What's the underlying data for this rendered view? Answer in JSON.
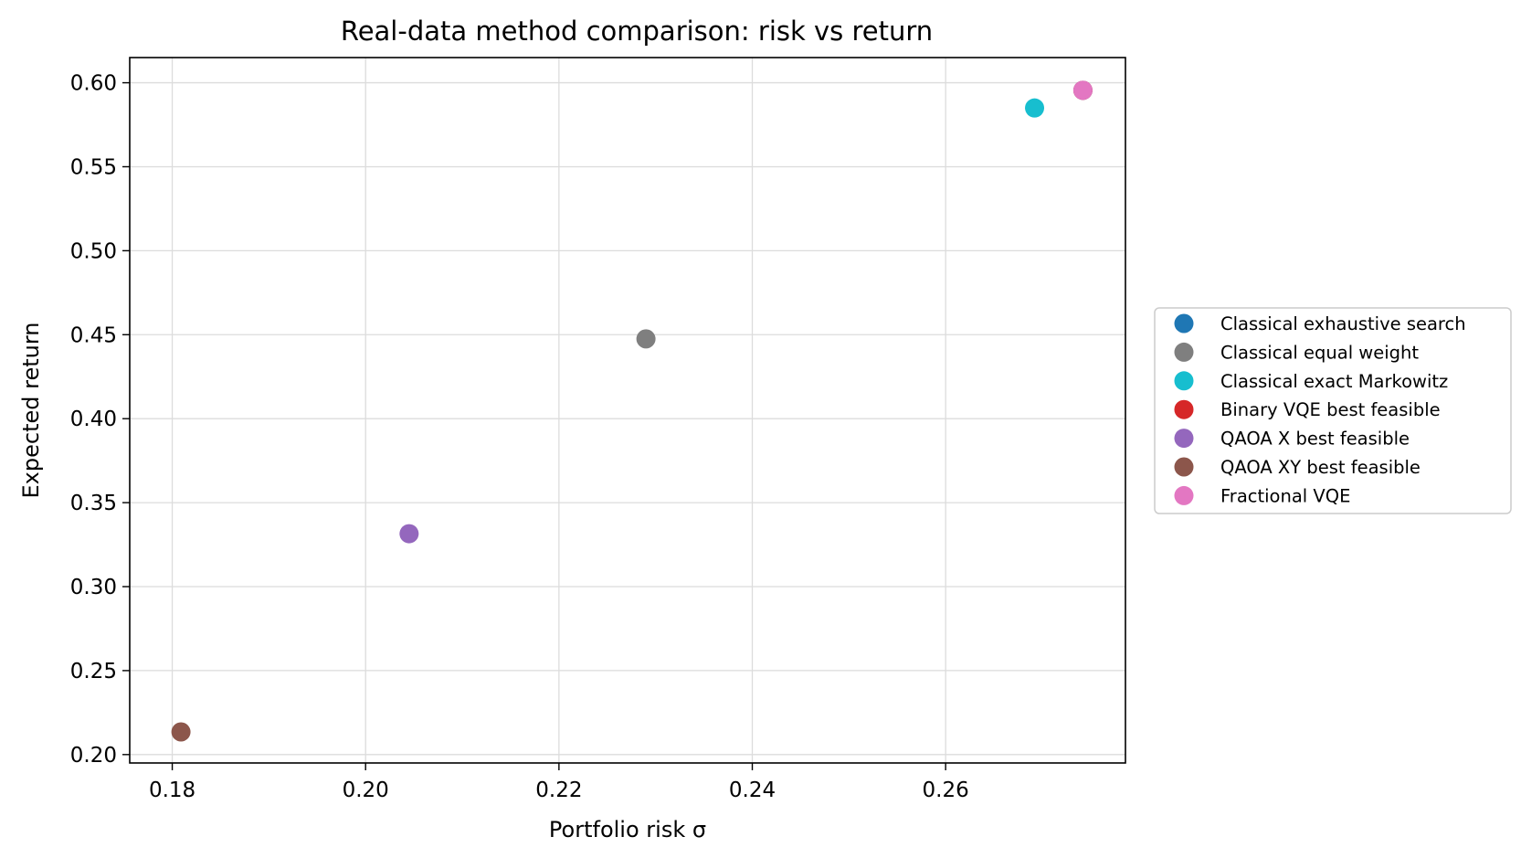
{
  "chart_data": {
    "type": "scatter",
    "title": "Real-data method comparison: risk vs return",
    "xlabel": "Portfolio risk σ",
    "ylabel": "Expected return",
    "xlim": [
      0.1756,
      0.2786
    ],
    "ylim": [
      0.195,
      0.615
    ],
    "xticks": [
      0.18,
      0.2,
      0.22,
      0.24,
      0.26
    ],
    "xtick_labels": [
      "0.18",
      "0.20",
      "0.22",
      "0.24",
      "0.26"
    ],
    "yticks": [
      0.2,
      0.25,
      0.3,
      0.35,
      0.4,
      0.45,
      0.5,
      0.55,
      0.6
    ],
    "ytick_labels": [
      "0.20",
      "0.25",
      "0.30",
      "0.35",
      "0.40",
      "0.45",
      "0.50",
      "0.55",
      "0.60"
    ],
    "grid": true,
    "legend_position": "outside-right",
    "series": [
      {
        "name": "Classical exhaustive search",
        "color": "#1f77b4",
        "points": [
          [
            0.2742,
            0.5955
          ]
        ]
      },
      {
        "name": "Classical equal weight",
        "color": "#7f7f7f",
        "points": [
          [
            0.229,
            0.4475
          ]
        ]
      },
      {
        "name": "Classical exact Markowitz",
        "color": "#17becf",
        "points": [
          [
            0.2692,
            0.585
          ]
        ]
      },
      {
        "name": "Binary VQE best feasible",
        "color": "#d62728",
        "points": [
          [
            0.2742,
            0.5955
          ]
        ]
      },
      {
        "name": "QAOA X best feasible",
        "color": "#9467bd",
        "points": [
          [
            0.2045,
            0.3315
          ]
        ]
      },
      {
        "name": "QAOA XY best feasible",
        "color": "#8c564b",
        "points": [
          [
            0.1809,
            0.2135
          ]
        ]
      },
      {
        "name": "Fractional VQE",
        "color": "#e377c2",
        "points": [
          [
            0.2742,
            0.5955
          ]
        ]
      }
    ]
  }
}
